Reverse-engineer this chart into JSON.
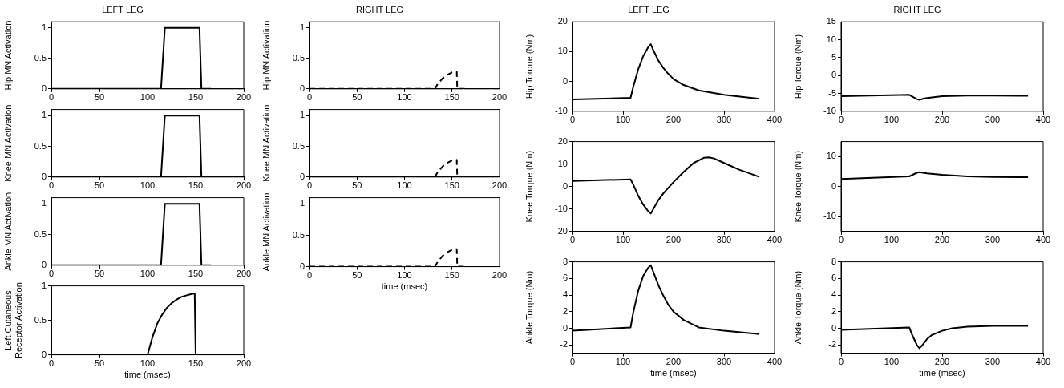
{
  "chart_data": [
    {
      "type": "line",
      "title": "LEFT LEG",
      "ylabel": "Hip MN Activation",
      "x": [
        0,
        114,
        118,
        154,
        156,
        166
      ],
      "values": [
        0,
        0,
        1,
        1,
        0,
        0
      ],
      "color": "#000000",
      "xlim": [
        0,
        200
      ],
      "xticks": [
        0,
        50,
        100,
        150,
        200
      ],
      "ylim": [
        0,
        1.1
      ],
      "yticks": [
        0,
        0.5,
        1
      ]
    },
    {
      "type": "line",
      "ylabel": "Knee MN Activation",
      "x": [
        0,
        114,
        118,
        154,
        156,
        166
      ],
      "values": [
        0,
        0,
        1,
        1,
        0,
        0
      ],
      "color": "#000000",
      "xlim": [
        0,
        200
      ],
      "xticks": [
        0,
        50,
        100,
        150,
        200
      ],
      "ylim": [
        0,
        1.1
      ],
      "yticks": [
        0,
        0.5,
        1
      ]
    },
    {
      "type": "line",
      "ylabel": "Ankle MN Activation",
      "x": [
        0,
        114,
        118,
        154,
        156,
        166
      ],
      "values": [
        0,
        0,
        1,
        1,
        0,
        0
      ],
      "color": "#000000",
      "xlim": [
        0,
        200
      ],
      "xticks": [
        0,
        50,
        100,
        150,
        200
      ],
      "ylim": [
        0,
        1.1
      ],
      "yticks": [
        0,
        0.5,
        1
      ]
    },
    {
      "type": "line",
      "ylabel": "Left Cutaneous Receptor Activation",
      "xlabel": "time (msec)",
      "x": [
        0,
        100,
        105,
        110,
        115,
        120,
        125,
        130,
        135,
        140,
        145,
        149,
        150,
        166
      ],
      "values": [
        0,
        0,
        0.25,
        0.45,
        0.58,
        0.68,
        0.75,
        0.8,
        0.84,
        0.86,
        0.88,
        0.89,
        0,
        0
      ],
      "color": "#000000",
      "xlim": [
        0,
        200
      ],
      "xticks": [
        0,
        50,
        100,
        150,
        200
      ],
      "ylim": [
        0,
        1
      ],
      "yticks": [
        0,
        0.5,
        1
      ]
    },
    {
      "type": "line",
      "title": "RIGHT LEG",
      "ylabel": "Hip MN Activation",
      "line_style": "dashed",
      "x": [
        0,
        132,
        135,
        140,
        145,
        150,
        155,
        155.5,
        166
      ],
      "values": [
        0,
        0,
        0.08,
        0.17,
        0.23,
        0.27,
        0.28,
        0,
        0
      ],
      "color": "#000000",
      "xlim": [
        0,
        200
      ],
      "xticks": [
        0,
        50,
        100,
        150,
        200
      ],
      "ylim": [
        0,
        1.1
      ],
      "yticks": [
        0,
        0.5,
        1
      ]
    },
    {
      "type": "line",
      "ylabel": "Knee MN Activation",
      "line_style": "dashed",
      "x": [
        0,
        132,
        135,
        140,
        145,
        150,
        155,
        155.5,
        166
      ],
      "values": [
        0,
        0,
        0.08,
        0.17,
        0.23,
        0.27,
        0.28,
        0,
        0
      ],
      "color": "#000000",
      "xlim": [
        0,
        200
      ],
      "xticks": [
        0,
        50,
        100,
        150,
        200
      ],
      "ylim": [
        0,
        1.1
      ],
      "yticks": [
        0,
        0.5,
        1
      ]
    },
    {
      "type": "line",
      "ylabel": "Ankle MN Activation",
      "xlabel": "time (msec)",
      "line_style": "dashed",
      "x": [
        0,
        132,
        135,
        140,
        145,
        150,
        155,
        155.5,
        166
      ],
      "values": [
        0,
        0,
        0.08,
        0.17,
        0.23,
        0.27,
        0.28,
        0,
        0
      ],
      "color": "#000000",
      "xlim": [
        0,
        200
      ],
      "xticks": [
        0,
        50,
        100,
        150,
        200
      ],
      "ylim": [
        0,
        1.1
      ],
      "yticks": [
        0,
        0.5,
        1
      ]
    },
    {
      "type": "line",
      "title": "LEFT LEG",
      "ylabel": "Hip Torque (Nm)",
      "x": [
        0,
        115,
        120,
        130,
        140,
        150,
        155,
        160,
        170,
        180,
        190,
        200,
        220,
        250,
        300,
        370
      ],
      "values": [
        -6,
        -5.5,
        -2,
        4,
        8.5,
        11.5,
        12.5,
        10.5,
        7,
        4.5,
        2.5,
        0.8,
        -1.2,
        -3,
        -4.5,
        -5.8
      ],
      "color": "#000000",
      "xlim": [
        0,
        400
      ],
      "xticks": [
        0,
        100,
        200,
        300,
        400
      ],
      "ylim": [
        -10,
        20
      ],
      "yticks": [
        -10,
        0,
        10,
        20
      ]
    },
    {
      "type": "line",
      "ylabel": "Knee Torque (Nm)",
      "x": [
        0,
        115,
        120,
        130,
        140,
        150,
        155,
        160,
        170,
        180,
        200,
        220,
        240,
        260,
        270,
        280,
        300,
        330,
        370
      ],
      "values": [
        2.5,
        3.2,
        1,
        -4,
        -8,
        -11,
        -12,
        -10,
        -6,
        -3,
        2,
        6.5,
        10.5,
        12.8,
        13,
        12.5,
        10.5,
        7.5,
        4.3
      ],
      "color": "#000000",
      "xlim": [
        0,
        400
      ],
      "xticks": [
        0,
        100,
        200,
        300,
        400
      ],
      "ylim": [
        -20,
        20
      ],
      "yticks": [
        -20,
        -10,
        0,
        10,
        20
      ]
    },
    {
      "type": "line",
      "ylabel": "Ankle Torque (Nm)",
      "xlabel": "time (msec)",
      "x": [
        0,
        115,
        120,
        130,
        140,
        150,
        155,
        160,
        170,
        180,
        190,
        200,
        220,
        250,
        300,
        370
      ],
      "values": [
        -0.3,
        0.1,
        1.8,
        4.5,
        6.3,
        7.3,
        7.6,
        6.8,
        5.2,
        3.9,
        2.8,
        2,
        1,
        0.1,
        -0.3,
        -0.7
      ],
      "color": "#000000",
      "xlim": [
        0,
        400
      ],
      "xticks": [
        0,
        100,
        200,
        300,
        400
      ],
      "ylim": [
        -3,
        8
      ],
      "yticks": [
        -2,
        0,
        2,
        4,
        6,
        8
      ]
    },
    {
      "type": "line",
      "title": "RIGHT LEG",
      "ylabel": "Hip Torque (Nm)",
      "x": [
        0,
        135,
        140,
        150,
        155,
        165,
        180,
        200,
        250,
        300,
        370
      ],
      "values": [
        -5.8,
        -5.4,
        -5.8,
        -6.6,
        -6.8,
        -6.4,
        -6.1,
        -5.8,
        -5.6,
        -5.6,
        -5.7
      ],
      "color": "#000000",
      "xlim": [
        0,
        400
      ],
      "xticks": [
        0,
        100,
        200,
        300,
        400
      ],
      "ylim": [
        -10,
        15
      ],
      "yticks": [
        -10,
        -5,
        0,
        5,
        10,
        15
      ]
    },
    {
      "type": "line",
      "ylabel": "Knee Torque (Nm)",
      "x": [
        0,
        135,
        150,
        155,
        170,
        200,
        250,
        300,
        370
      ],
      "values": [
        2.5,
        3.4,
        4.6,
        4.8,
        4.4,
        3.9,
        3.4,
        3.2,
        3.1
      ],
      "color": "#000000",
      "xlim": [
        0,
        400
      ],
      "xticks": [
        0,
        100,
        200,
        300,
        400
      ],
      "ylim": [
        -15,
        15
      ],
      "yticks": [
        -10,
        0,
        10
      ]
    },
    {
      "type": "line",
      "ylabel": "Ankle Torque (Nm)",
      "xlabel": "time (msec)",
      "x": [
        0,
        135,
        140,
        150,
        155,
        160,
        170,
        180,
        200,
        220,
        250,
        300,
        370
      ],
      "values": [
        -0.2,
        0.1,
        -0.7,
        -2,
        -2.4,
        -2.1,
        -1.3,
        -0.8,
        -0.3,
        0,
        0.2,
        0.3,
        0.3
      ],
      "color": "#000000",
      "xlim": [
        0,
        400
      ],
      "xticks": [
        0,
        100,
        200,
        300,
        400
      ],
      "ylim": [
        -3,
        8
      ],
      "yticks": [
        -2,
        0,
        2,
        4,
        6,
        8
      ]
    }
  ]
}
